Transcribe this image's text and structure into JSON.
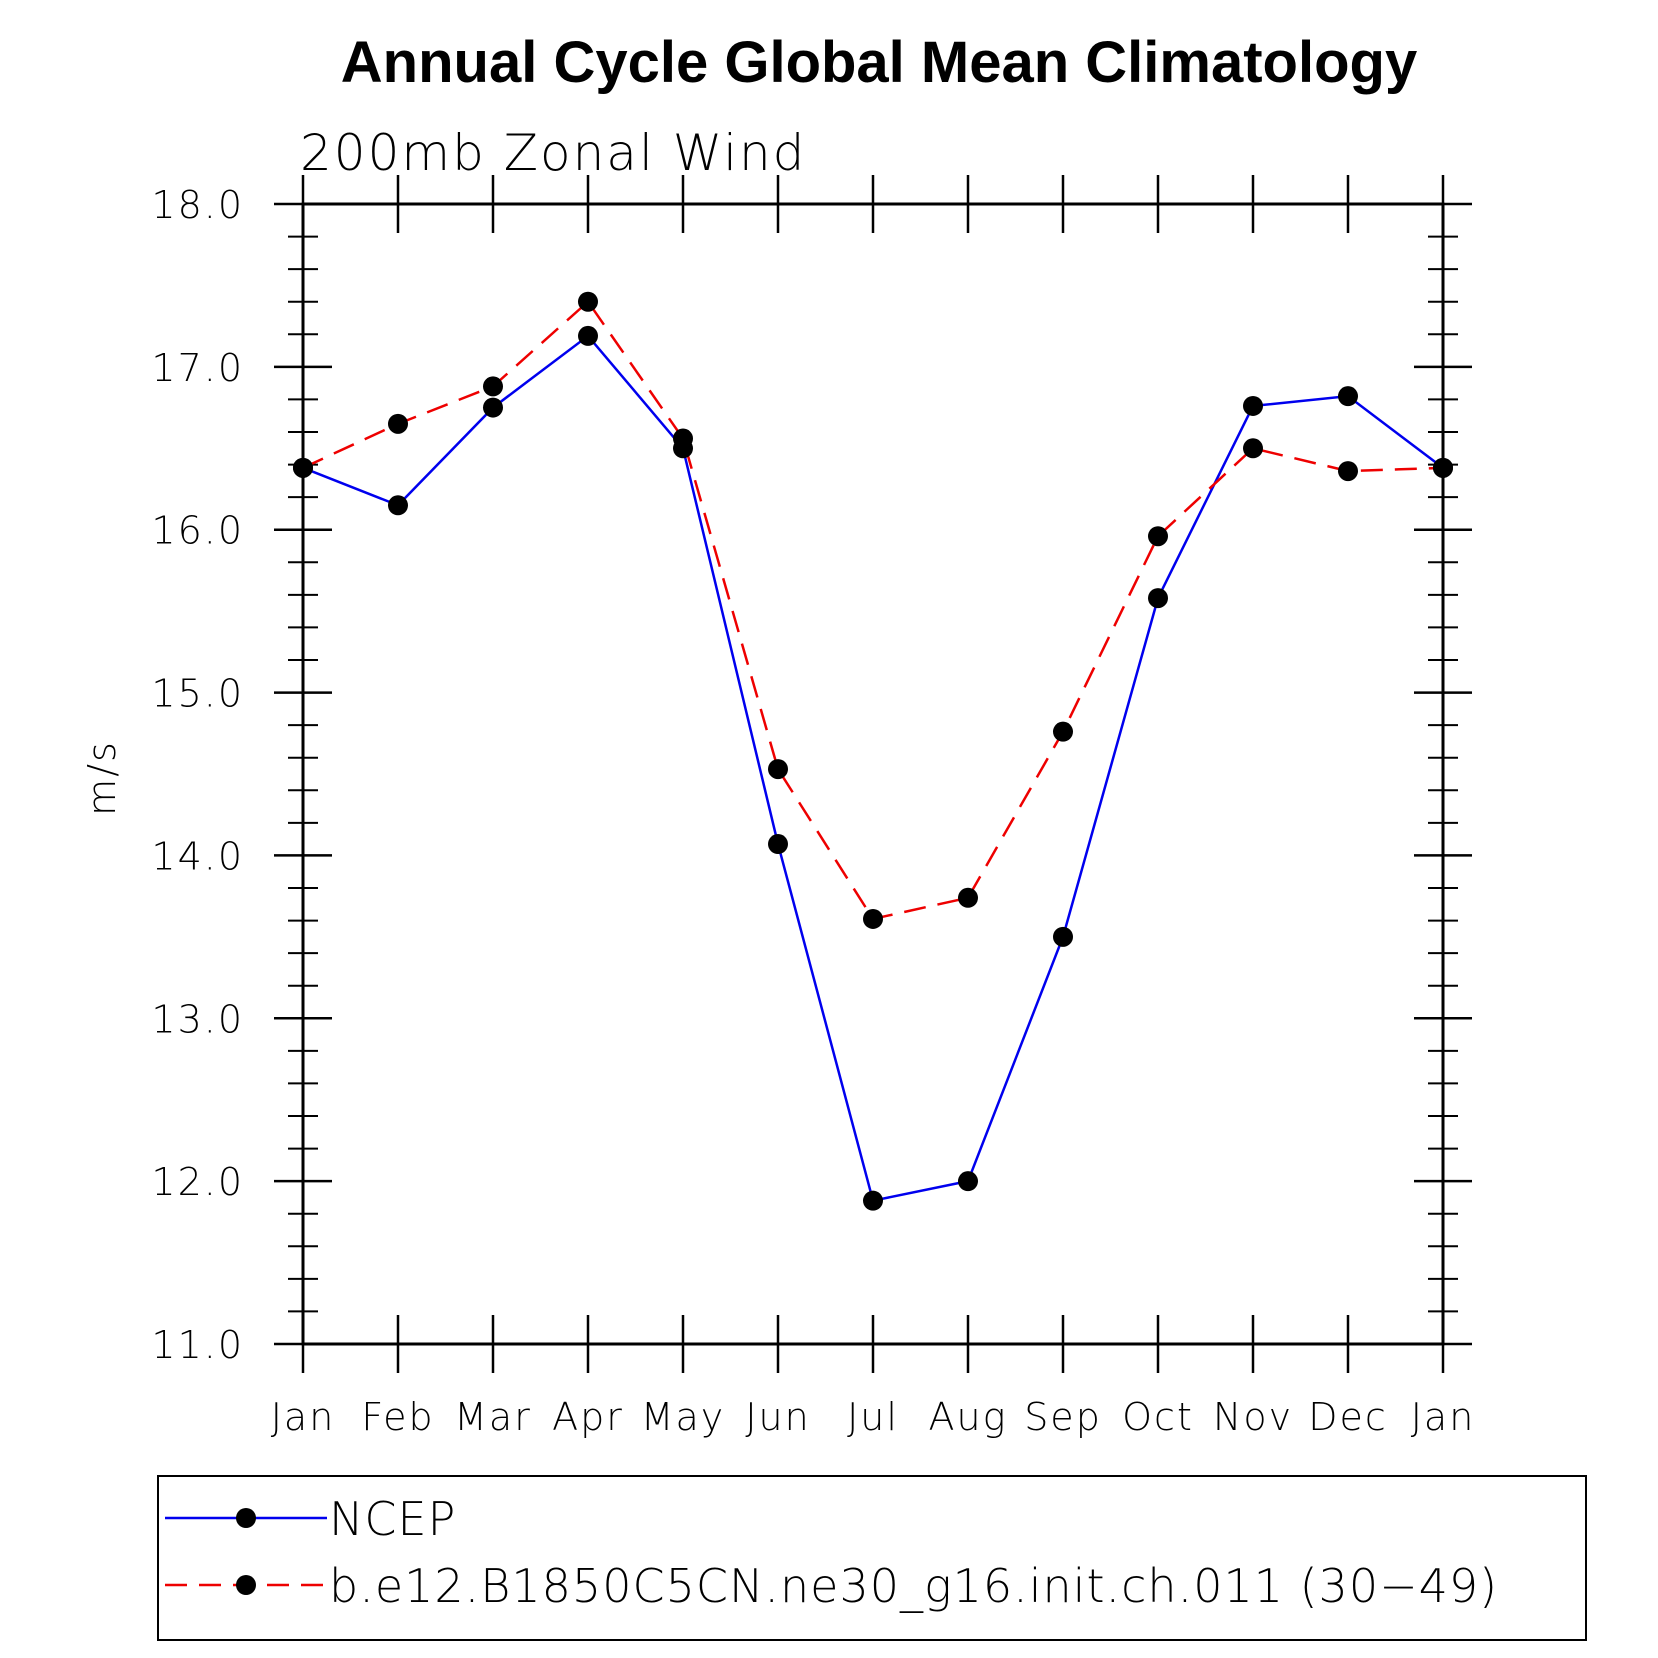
{
  "chart_data": {
    "type": "line",
    "title": "Annual Cycle Global Mean Climatology",
    "subtitle": "200mb Zonal Wind",
    "ylabel": "m/s",
    "xlabel": "",
    "ylim": [
      11.0,
      18.0
    ],
    "y_ticks": [
      "11.0",
      "12.0",
      "13.0",
      "14.0",
      "15.0",
      "16.0",
      "17.0",
      "18.0"
    ],
    "categories": [
      "Jan",
      "Feb",
      "Mar",
      "Apr",
      "May",
      "Jun",
      "Jul",
      "Aug",
      "Sep",
      "Oct",
      "Nov",
      "Dec",
      "Jan"
    ],
    "grid": false,
    "legend_position": "bottom",
    "series": [
      {
        "name": "NCEP",
        "color": "#0000ee",
        "line_style": "solid",
        "marker": "filled-circle",
        "values": [
          16.38,
          16.15,
          16.75,
          17.19,
          16.5,
          14.07,
          11.88,
          12.0,
          13.5,
          15.58,
          16.76,
          16.82,
          16.38
        ]
      },
      {
        "name": "b.e12.B1850C5CN.ne30_g16.init.ch.011 (30−49)",
        "color": "#ee0000",
        "line_style": "dashed",
        "marker": "filled-circle",
        "values": [
          16.38,
          16.65,
          16.88,
          17.4,
          16.56,
          14.53,
          13.61,
          13.74,
          14.76,
          15.96,
          16.5,
          16.36,
          16.38
        ]
      }
    ]
  }
}
